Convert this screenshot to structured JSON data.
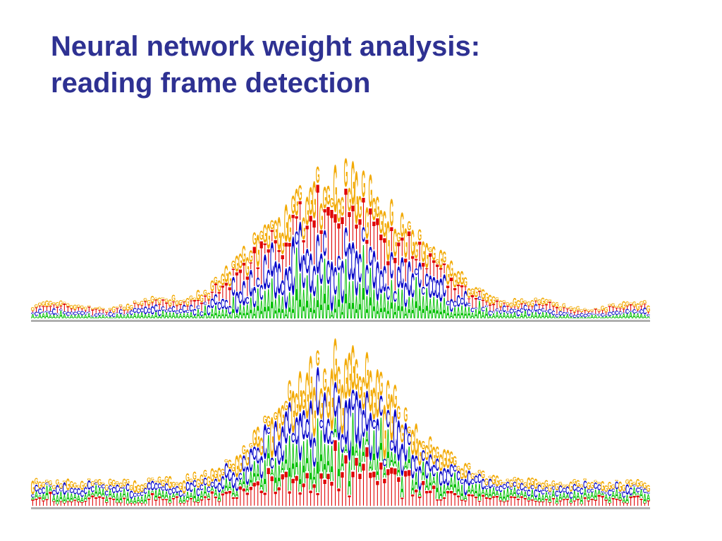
{
  "slide": {
    "title_line1": "Neural network weight analysis:",
    "title_line2": "reading frame detection"
  },
  "figures": {
    "top": {
      "kind": "sequence-logo",
      "letters": [
        "A",
        "C",
        "G",
        "T"
      ]
    },
    "bottom": {
      "kind": "sequence-logo",
      "letters": [
        "A",
        "C",
        "G",
        "T"
      ]
    }
  },
  "colors": {
    "title": "#2e3192",
    "A": "#00c000",
    "C": "#0000c8",
    "G": "#f2a900",
    "T": "#e00000"
  }
}
